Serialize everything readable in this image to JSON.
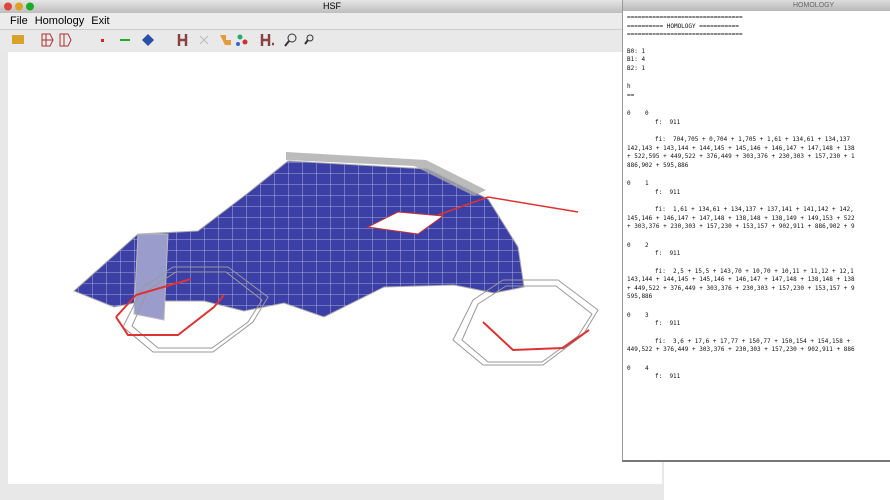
{
  "app_window": {
    "title": "HSF",
    "menu": [
      "File",
      "Homology",
      "Exit"
    ]
  },
  "console_window": {
    "title": "HOMOLOGY",
    "header": [
      "================================",
      "========== HOMOLOGY ===========",
      "================================"
    ],
    "betti": [
      "B0: 1",
      "B1: 4",
      "B2: 1"
    ],
    "h": [
      "h",
      "=="
    ],
    "blocks": [
      {
        "index": "0    0",
        "f": "f:  911",
        "fi": [
          "fi:  704,705 + 0,704 + 1,705 + 1,61 + 134,61 + 134,137",
          "142,143 + 143,144 + 144,145 + 145,146 + 146,147 + 147,148 + 138",
          "+ 522,595 + 449,522 + 376,449 + 303,376 + 230,303 + 157,230 + 1",
          "886,902 + 595,886"
        ]
      },
      {
        "index": "0    1",
        "f": "f:  911",
        "fi": [
          "fi:  1,61 + 134,61 + 134,137 + 137,141 + 141,142 + 142,",
          "145,146 + 146,147 + 147,148 + 138,148 + 138,149 + 149,153 + 522",
          "+ 303,376 + 230,303 + 157,230 + 153,157 + 902,911 + 886,902 + 9"
        ]
      },
      {
        "index": "0    2",
        "f": "f:  911",
        "fi": [
          "fi:  2,5 + 15,5 + 143,70 + 10,70 + 10,11 + 11,12 + 12,1",
          "143,144 + 144,145 + 145,146 + 146,147 + 147,148 + 138,148 + 138",
          "+ 449,522 + 376,449 + 303,376 + 230,303 + 157,230 + 153,157 + 9",
          "595,886"
        ]
      },
      {
        "index": "0    3",
        "f": "f:  911",
        "fi": [
          "fi:  3,6 + 17,6 + 17,77 + 150,77 + 150,154 + 154,158 +",
          "449,522 + 376,449 + 303,376 + 230,303 + 157,230 + 902,911 + 886"
        ]
      },
      {
        "index": "0    4",
        "f": "f:  911",
        "fi": []
      }
    ]
  }
}
